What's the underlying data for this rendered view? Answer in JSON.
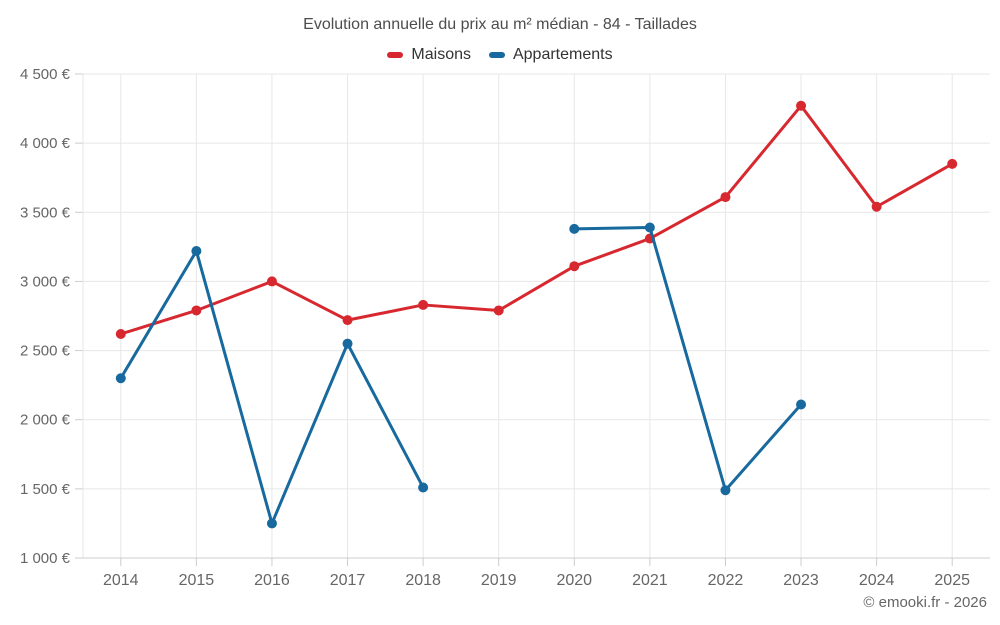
{
  "title": "Evolution annuelle du prix au m² médian - 84 - Taillades",
  "legend": [
    {
      "label": "Maisons",
      "color": "#d8282f"
    },
    {
      "label": "Appartements",
      "color": "#17699e"
    }
  ],
  "footer": {
    "copyright": "© emooki.fr - 2026"
  },
  "colors": {
    "grid": "#e7e7e7",
    "axis": "#cccccc",
    "axis_label": "#666666",
    "title": "#4d4d4d",
    "legend_text": "#333333"
  },
  "chart_data": {
    "type": "line",
    "title": "Evolution annuelle du prix au m² médian - 84 - Taillades",
    "categories": [
      "2014",
      "2015",
      "2016",
      "2017",
      "2018",
      "2019",
      "2020",
      "2021",
      "2022",
      "2023",
      "2024",
      "2025"
    ],
    "series": [
      {
        "name": "Maisons",
        "color": "#d8282f",
        "values": [
          2620,
          2790,
          3000,
          2720,
          2830,
          2790,
          3110,
          3310,
          3610,
          4270,
          3540,
          3850
        ]
      },
      {
        "name": "Appartements",
        "color": "#17699e",
        "values": [
          2300,
          3220,
          1250,
          2550,
          1510,
          null,
          3380,
          3390,
          1490,
          2110,
          null,
          null
        ]
      }
    ],
    "xlabel": "",
    "ylabel": "",
    "ylim": [
      1000,
      4500
    ],
    "ytick_step": 500,
    "yticks": [
      {
        "value": 1000,
        "label": "1 000 €"
      },
      {
        "value": 1500,
        "label": "1 500 €"
      },
      {
        "value": 2000,
        "label": "2 000 €"
      },
      {
        "value": 2500,
        "label": "2 500 €"
      },
      {
        "value": 3000,
        "label": "3 000 €"
      },
      {
        "value": 3500,
        "label": "3 500 €"
      },
      {
        "value": 4000,
        "label": "4 000 €"
      },
      {
        "value": 4500,
        "label": "4 500 €"
      }
    ],
    "grid": true,
    "legend_position": "top",
    "marker_radius": 5,
    "line_width": 3
  }
}
